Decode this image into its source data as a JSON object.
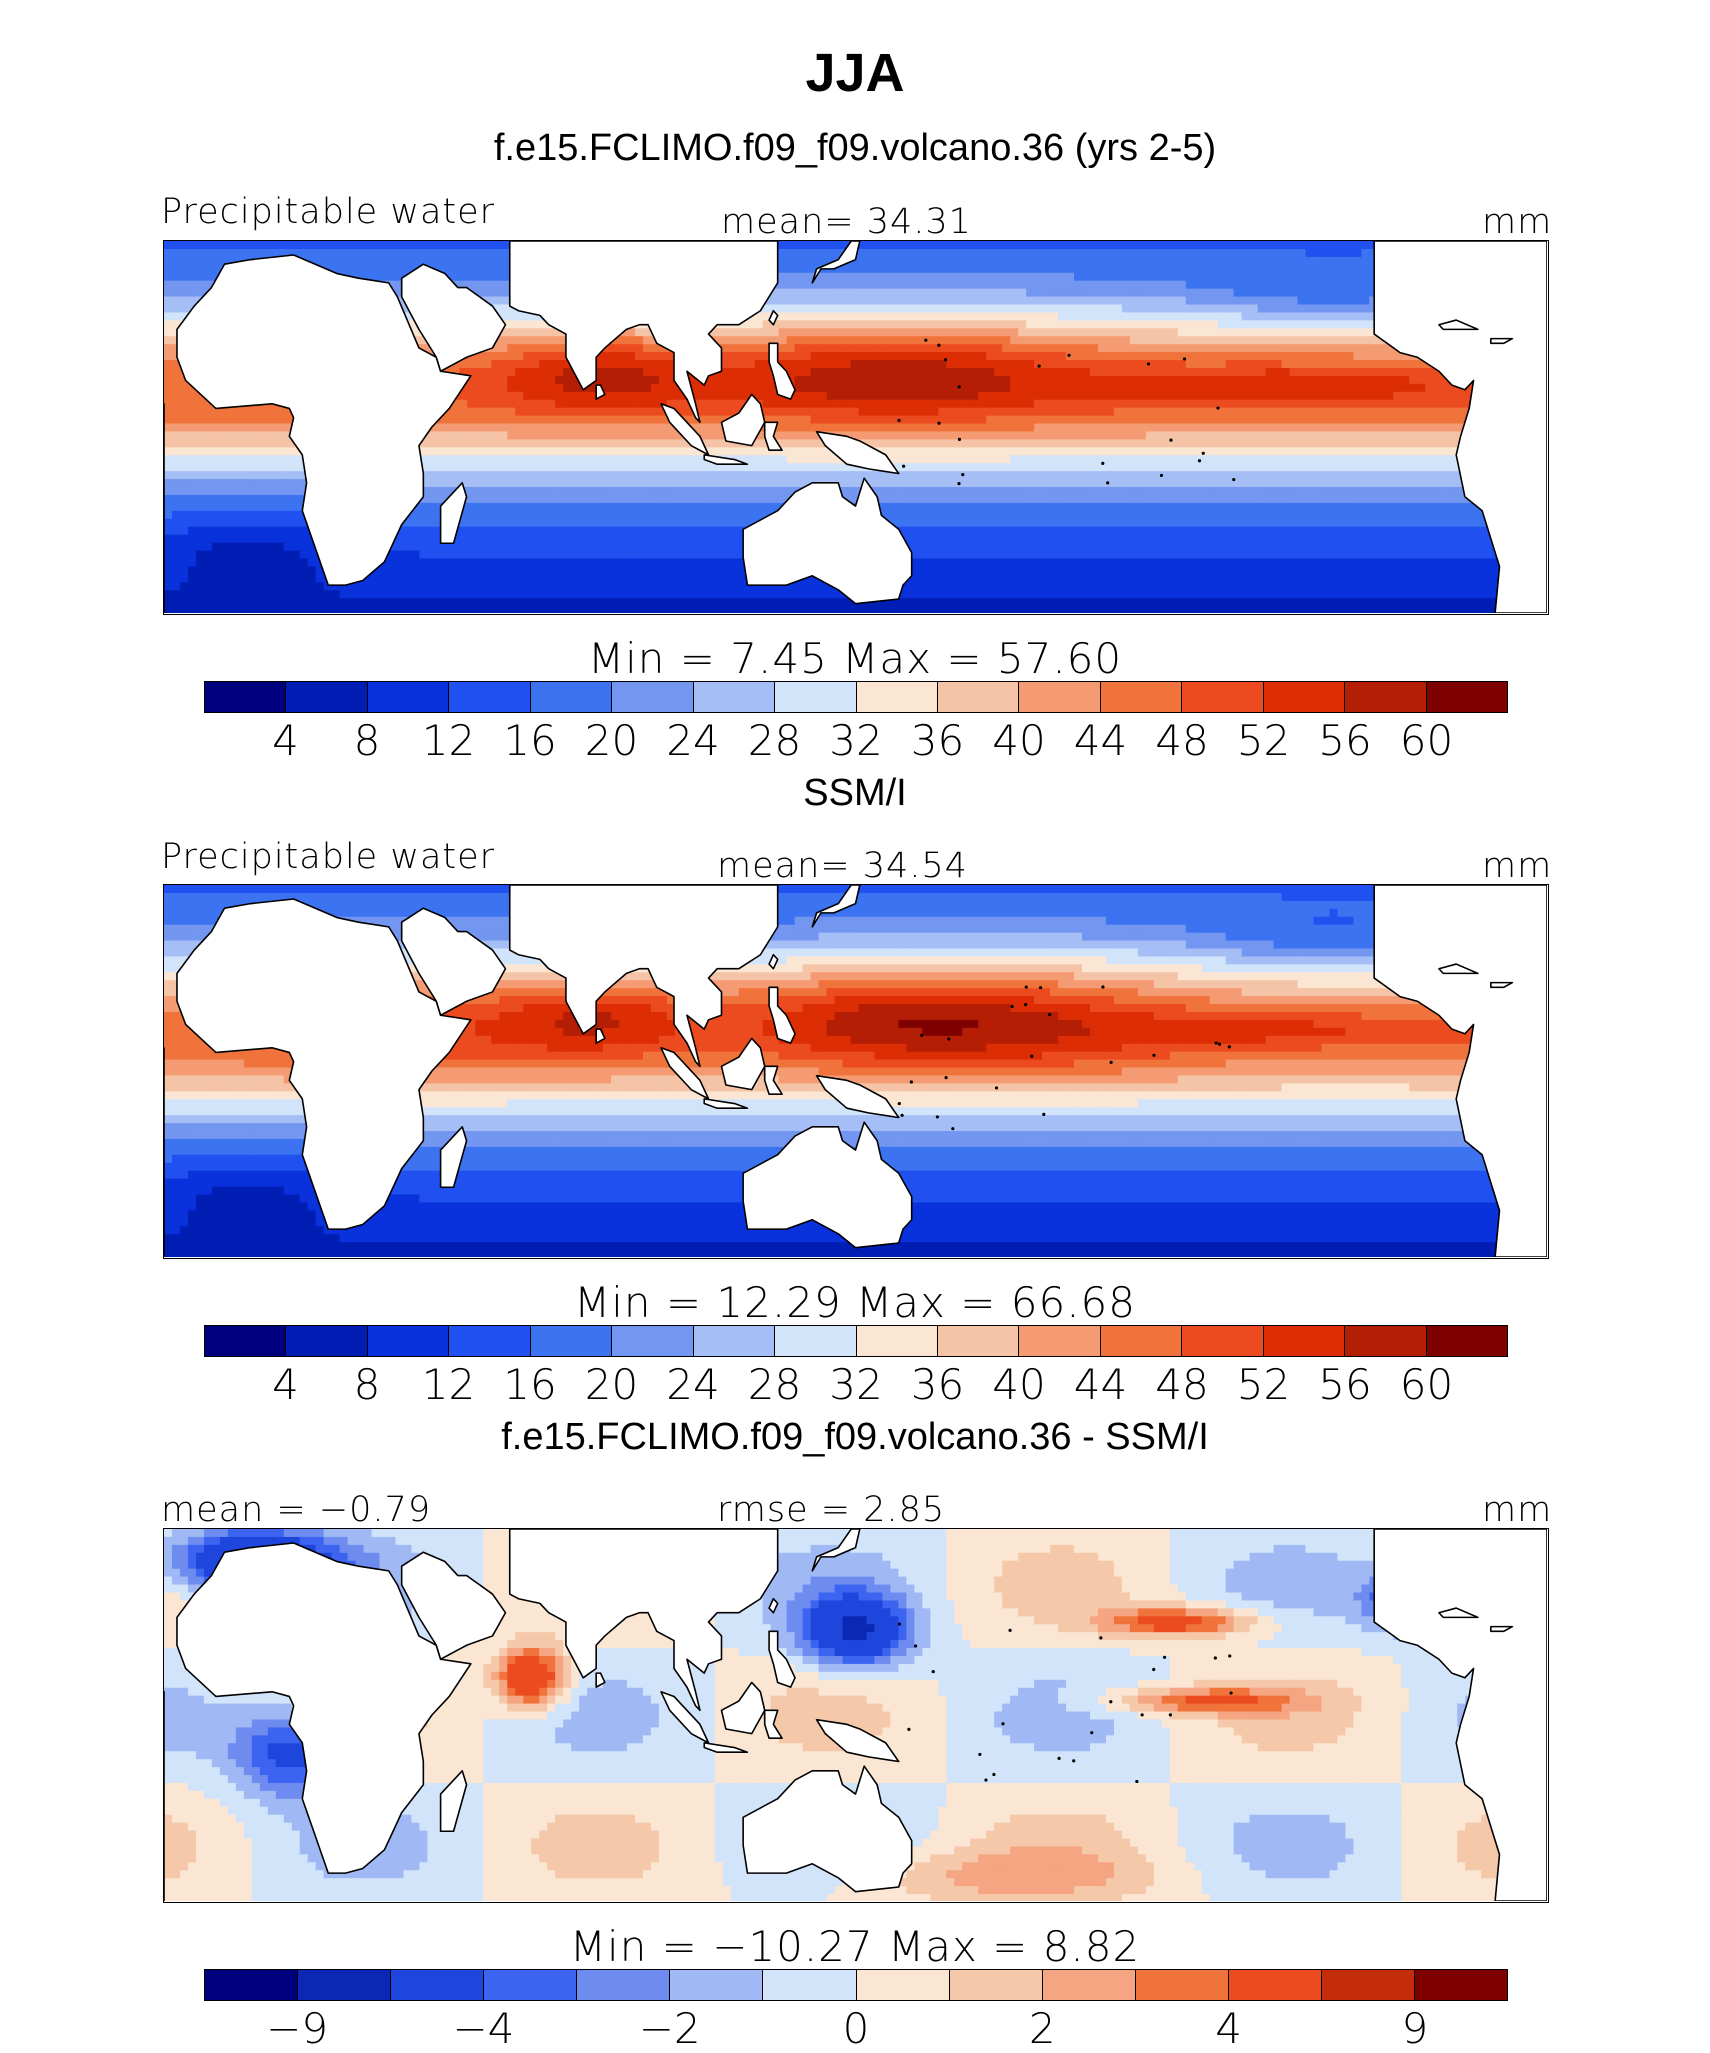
{
  "title": "JJA",
  "colors": {
    "abs_palette": [
      "#00007f",
      "#001eb4",
      "#0a32dc",
      "#2050f0",
      "#3c73f0",
      "#7396f0",
      "#a5bef5",
      "#d2e4fa",
      "#fae6d2",
      "#f5c3a5",
      "#f59b73",
      "#f0733c",
      "#eb4b1e",
      "#dc2d05",
      "#b41e05",
      "#7f0000"
    ],
    "diff_palette": [
      "#00007f",
      "#0a28b4",
      "#1e46dc",
      "#3c64f0",
      "#6e8cf0",
      "#a0b9f5",
      "#d2e4fa",
      "#fae6d2",
      "#f5c8aa",
      "#f5a582",
      "#f0733c",
      "#eb4b1e",
      "#c32d0a",
      "#7f0000"
    ]
  },
  "chart_data": [
    {
      "type": "heatmap",
      "panel_title": "f.e15.FCLIMO.f09_f09.volcano.36 (yrs 2-5)",
      "field_label": "Precipitable water",
      "mean_label": "mean=  34.31",
      "units": "mm",
      "min_max_label": "Min =   7.45 Max =  57.60",
      "min": 7.45,
      "max": 57.6,
      "mean": 34.31,
      "colorbar_ticks": [
        "4",
        "8",
        "12",
        "16",
        "20",
        "24",
        "28",
        "32",
        "36",
        "40",
        "44",
        "48",
        "52",
        "56",
        "60"
      ]
    },
    {
      "type": "heatmap",
      "panel_title": "SSM/I",
      "field_label": "Precipitable water",
      "mean_label": "mean=  34.54",
      "units": "mm",
      "min_max_label": "Min =  12.29 Max =  66.68",
      "min": 12.29,
      "max": 66.68,
      "mean": 34.54,
      "colorbar_ticks": [
        "4",
        "8",
        "12",
        "16",
        "20",
        "24",
        "28",
        "32",
        "36",
        "40",
        "44",
        "48",
        "52",
        "56",
        "60"
      ]
    },
    {
      "type": "heatmap",
      "panel_title": "f.e15.FCLIMO.f09_f09.volcano.36 - SSM/I",
      "field_label": "mean =  −0.79",
      "mean_label": "rmse =   2.85",
      "units": "mm",
      "min_max_label": "Min = −10.27 Max =   8.82",
      "min": -10.27,
      "max": 8.82,
      "mean": -0.79,
      "rmse": 2.85,
      "colorbar_ticks": [
        "−9",
        "−4",
        "−2",
        "0",
        "2",
        "4",
        "9"
      ]
    }
  ]
}
